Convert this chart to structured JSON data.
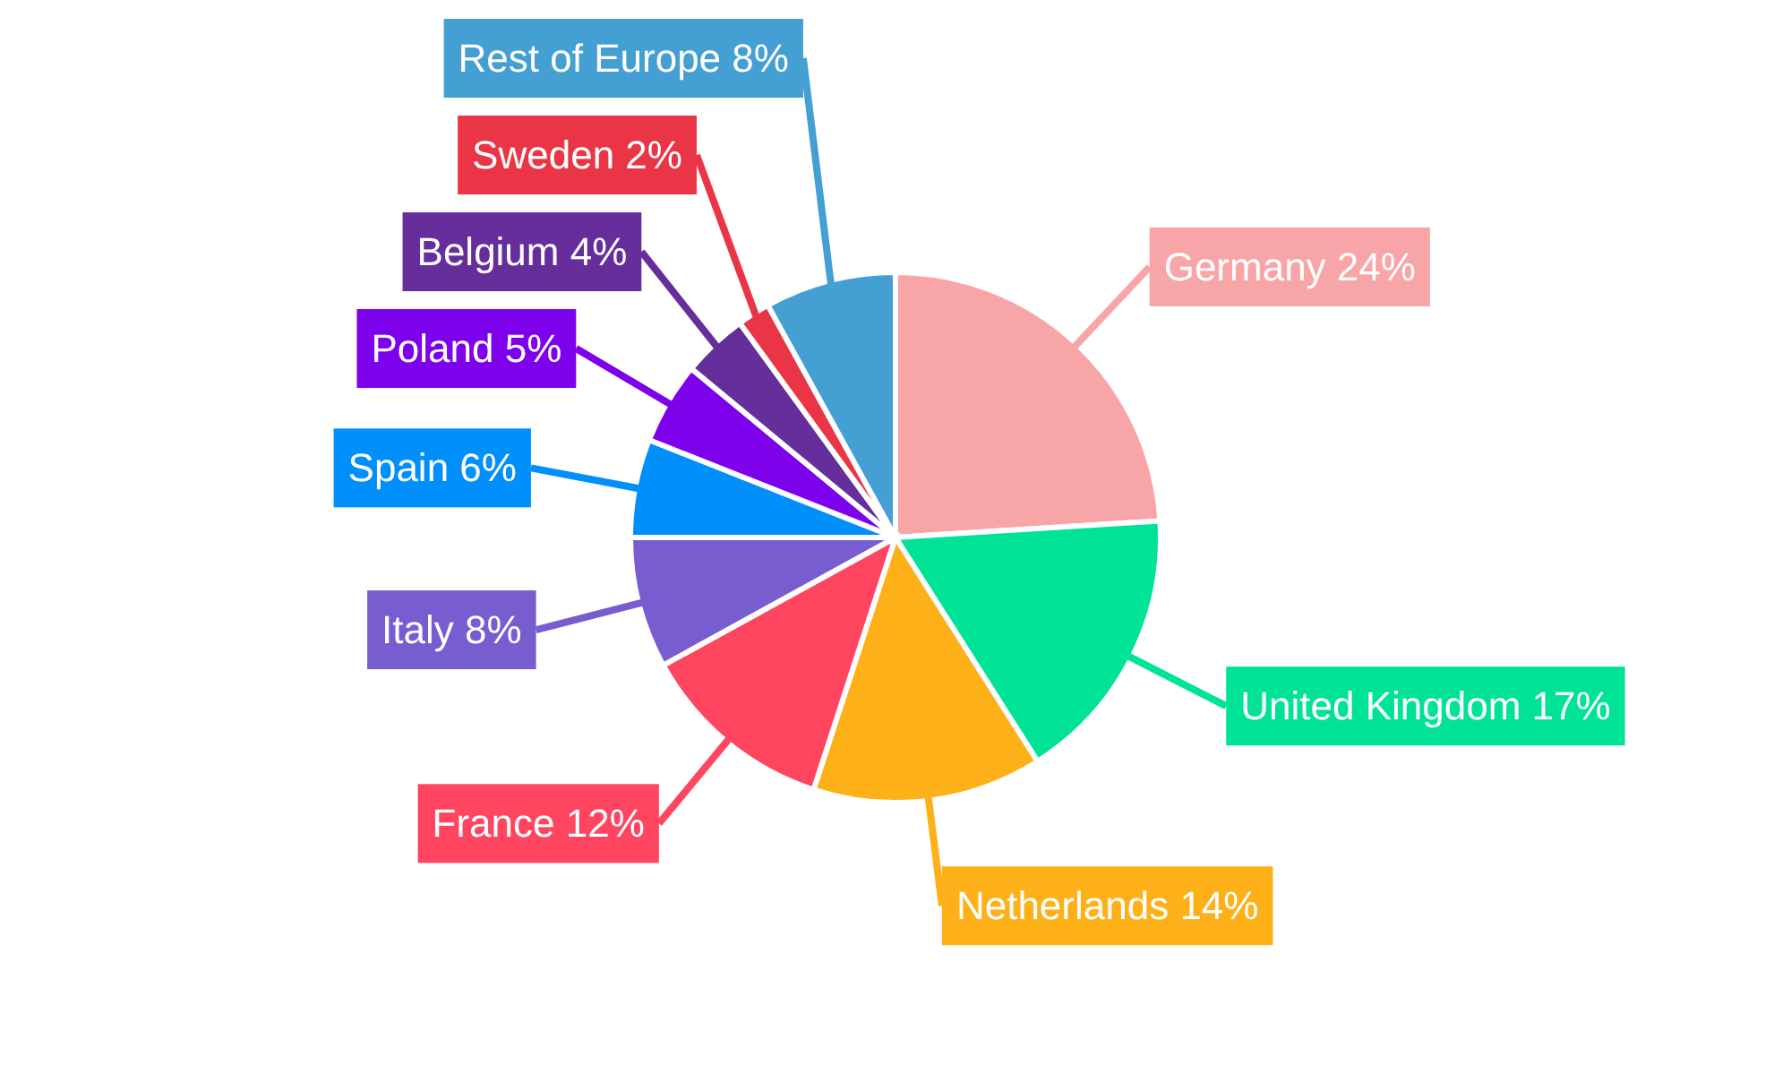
{
  "chart_data": {
    "type": "pie",
    "categories": [
      "Germany",
      "United Kingdom",
      "Netherlands",
      "France",
      "Italy",
      "Spain",
      "Poland",
      "Belgium",
      "Sweden",
      "Rest of Europe"
    ],
    "values": [
      24,
      17,
      14,
      12,
      8,
      6,
      5,
      4,
      2,
      8
    ],
    "value_labels": [
      "24%",
      "17%",
      "14%",
      "12%",
      "8%",
      "6%",
      "5%",
      "4%",
      "2%",
      "8%"
    ],
    "colors": [
      "#f8a5a7",
      "#00e396",
      "#feb019",
      "#ff4560",
      "#775dd0",
      "#008ffb",
      "#7d02eb",
      "#662e9b",
      "#ea3546",
      "#449fd3"
    ]
  }
}
